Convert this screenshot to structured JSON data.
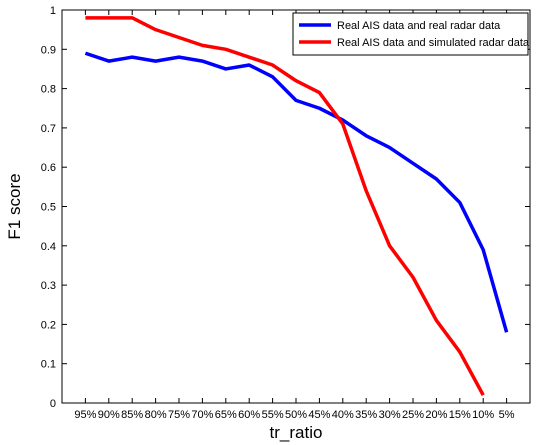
{
  "chart_data": {
    "type": "line",
    "xlabel": "tr_ratio",
    "ylabel": "F1 score",
    "categories": [
      "95%",
      "90%",
      "85%",
      "80%",
      "75%",
      "70%",
      "65%",
      "60%",
      "55%",
      "50%",
      "45%",
      "40%",
      "35%",
      "30%",
      "25%",
      "20%",
      "15%",
      "10%",
      "5%"
    ],
    "ylim": [
      0,
      1
    ],
    "yticks": [
      "0",
      "0.1",
      "0.2",
      "0.3",
      "0.4",
      "0.5",
      "0.6",
      "0.7",
      "0.8",
      "0.9",
      "1"
    ],
    "legend_position": "top-right",
    "grid": false,
    "series": [
      {
        "name": "Real AIS data and real radar data",
        "color": "#0000ff",
        "values": [
          0.89,
          0.87,
          0.88,
          0.87,
          0.88,
          0.87,
          0.85,
          0.86,
          0.83,
          0.77,
          0.75,
          0.72,
          0.68,
          0.65,
          0.61,
          0.57,
          0.51,
          0.39,
          0.18
        ]
      },
      {
        "name": "Real AIS data and simulated radar data",
        "color": "#ff0000",
        "values": [
          0.98,
          0.98,
          0.98,
          0.95,
          0.93,
          0.91,
          0.9,
          0.88,
          0.86,
          0.82,
          0.79,
          0.71,
          0.54,
          0.4,
          0.32,
          0.21,
          0.13,
          0.02,
          null
        ]
      }
    ]
  }
}
